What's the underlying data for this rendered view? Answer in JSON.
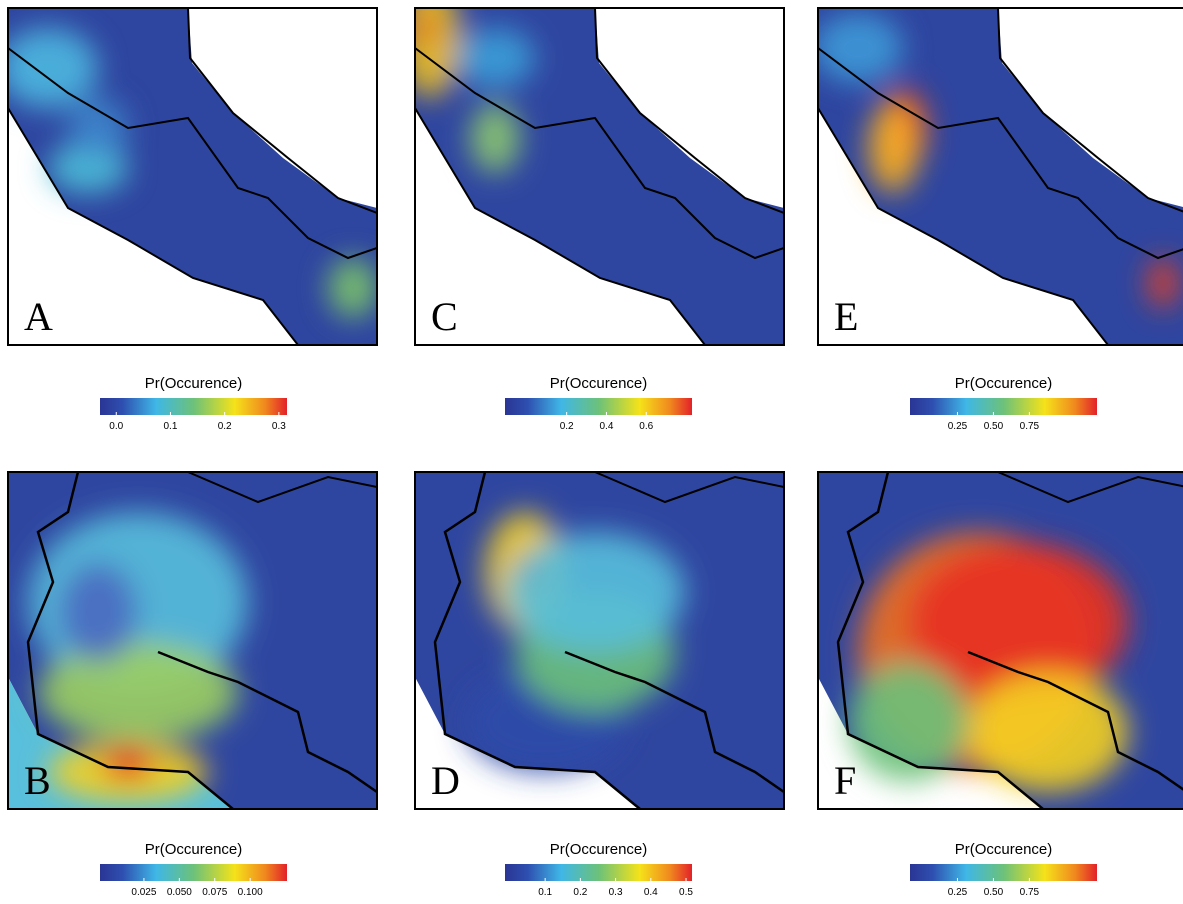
{
  "panels": [
    {
      "label": "A",
      "colorbar": {
        "title": "Pr(Occurence)",
        "lim": [
          -0.03,
          0.315
        ],
        "ticks": [
          {
            "value": 0,
            "label": "0.0"
          },
          0.1,
          0.2,
          0.3
        ]
      }
    },
    {
      "label": "C",
      "colorbar": {
        "title": "Pr(Occurence)",
        "lim": [
          -0.11,
          0.83
        ],
        "ticks": [
          0.2,
          0.4,
          0.6
        ]
      }
    },
    {
      "label": "E",
      "colorbar": {
        "title": "Pr(Occurence)",
        "lim": [
          -0.08,
          1.22
        ],
        "ticks": [
          0.25,
          {
            "value": 0.5,
            "label": "0.50"
          },
          0.75
        ]
      }
    },
    {
      "label": "B",
      "colorbar": {
        "title": "Pr(Occurence)",
        "lim": [
          -0.006,
          0.126
        ],
        "ticks": [
          0.025,
          {
            "value": 0.05,
            "label": "0.050"
          },
          0.075,
          {
            "value": 0.1,
            "label": "0.100"
          }
        ]
      }
    },
    {
      "label": "D",
      "colorbar": {
        "title": "Pr(Occurence)",
        "lim": [
          -0.014,
          0.517
        ],
        "ticks": [
          0.1,
          0.2,
          0.3,
          0.4,
          0.5
        ]
      }
    },
    {
      "label": "F",
      "colorbar": {
        "title": "Pr(Occurence)",
        "lim": [
          -0.08,
          1.22
        ],
        "ticks": [
          0.25,
          {
            "value": 0.5,
            "label": "0.50"
          },
          0.75
        ]
      }
    }
  ]
}
